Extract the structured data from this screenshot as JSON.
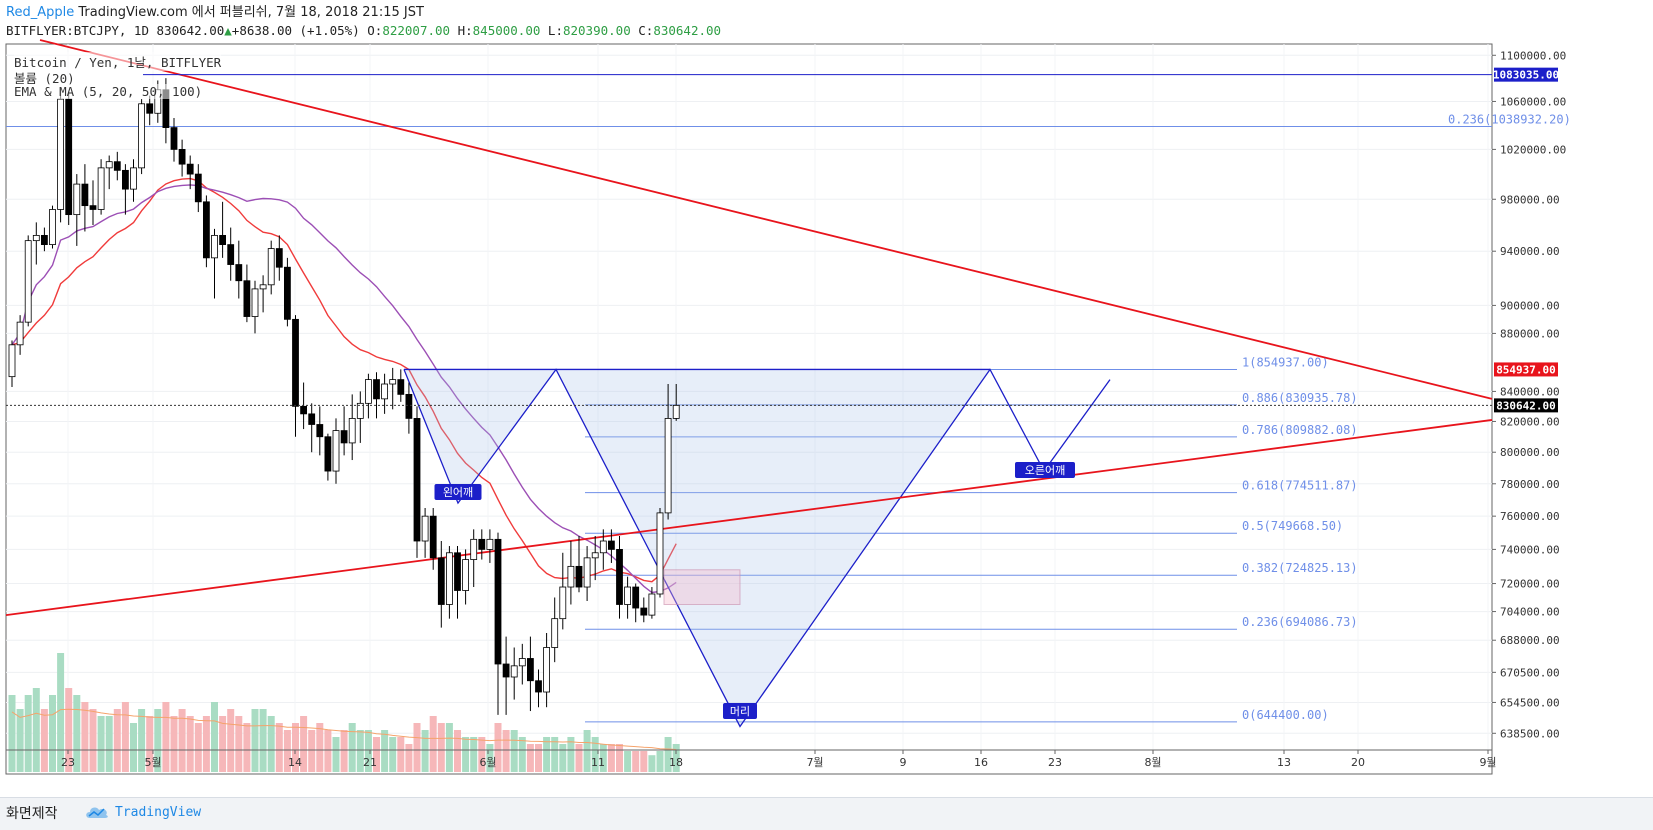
{
  "header": {
    "author": "Red_Apple",
    "published": "TradingView.com 에서 퍼블리쉬, 7월 18, 2018 21:15 JST",
    "symbol": "BITFLYER:BTCJPY, 1D",
    "last": "830642.00",
    "change": "+8638.00 (+1.05%)",
    "o_label": "O:",
    "o": "822007.00",
    "h_label": "H:",
    "h": "845000.00",
    "l_label": "L:",
    "l": "820390.00",
    "c_label": "C:",
    "c": "830642.00"
  },
  "legend": {
    "line1": "Bitcoin / Yen, 1날, BITFLYER",
    "line2": "볼륨 (20)",
    "line3": "EMA & MA (5, 20, 50, 100)"
  },
  "footer": {
    "made_with": "화면제작",
    "brand": "TradingView"
  },
  "colors": {
    "up": "#ffffff",
    "down": "#000000",
    "ema20": "#f03b3b",
    "ma50": "#9c4fb5",
    "trend": "#e8141c",
    "pattern": "#1c1fc9",
    "fib": "#6f8fe8",
    "vol_up": "#a9dcc3",
    "vol_down": "#f6b7b9",
    "vol_ma": "#f5a36b"
  },
  "chart_data": {
    "type": "candlestick",
    "title": "Bitcoin / Yen, 1날, BITFLYER",
    "y_axis": {
      "ticks": [
        "1100000.00",
        "1060000.00",
        "1020000.00",
        "980000.00",
        "940000.00",
        "900000.00",
        "880000.00",
        "840000.00",
        "820000.00",
        "800000.00",
        "780000.00",
        "760000.00",
        "740000.00",
        "720000.00",
        "704000.00",
        "688000.00",
        "670500.00",
        "654500.00",
        "638500.00"
      ],
      "scale": "log"
    },
    "x_axis": {
      "ticks": [
        "23",
        "5월",
        "14",
        "21",
        "6월",
        "11",
        "18",
        "7월",
        "9",
        "16",
        "23",
        "8월",
        "13",
        "20",
        "9월"
      ]
    },
    "price_labels": [
      {
        "text": "1083035.00",
        "value": 1083035,
        "color": "#1c1fc9"
      },
      {
        "text": "854937.00",
        "value": 854937,
        "color": "#e8141c"
      },
      {
        "text": "830642.00",
        "value": 830642,
        "color": "#000000"
      }
    ],
    "fib_levels": [
      {
        "label": "0.236(1038932.20)",
        "value": 1038932.2
      },
      {
        "label": "1(854937.00)",
        "value": 854937.0
      },
      {
        "label": "0.886(830935.78)",
        "value": 830935.78
      },
      {
        "label": "0.786(809882.08)",
        "value": 809882.08
      },
      {
        "label": "0.618(774511.87)",
        "value": 774511.87
      },
      {
        "label": "0.5(749668.50)",
        "value": 749668.5
      },
      {
        "label": "0.382(724825.13)",
        "value": 724825.13
      },
      {
        "label": "0.236(694086.73)",
        "value": 694086.73
      },
      {
        "label": "0(644400.00)",
        "value": 644400.0
      }
    ],
    "annotations": [
      {
        "text": "왼어깨",
        "day": 25,
        "value": 770000
      },
      {
        "text": "머리",
        "day": 50,
        "value": 644400
      },
      {
        "text": "오른어깨",
        "day": 80,
        "value": 784000
      }
    ],
    "candles": [
      [
        850000,
        875000,
        843000,
        872000
      ],
      [
        872000,
        893000,
        865000,
        888000
      ],
      [
        888000,
        952000,
        885000,
        948000
      ],
      [
        948000,
        962000,
        930000,
        952000
      ],
      [
        952000,
        958000,
        940000,
        945000
      ],
      [
        945000,
        975000,
        942000,
        972000
      ],
      [
        972000,
        1072000,
        962000,
        1062000
      ],
      [
        1062000,
        1068000,
        960000,
        968000
      ],
      [
        968000,
        1000000,
        944000,
        992000
      ],
      [
        992000,
        1008000,
        955000,
        975000
      ],
      [
        975000,
        995000,
        960000,
        972000
      ],
      [
        972000,
        1012000,
        968000,
        1005000
      ],
      [
        1005000,
        1015000,
        988000,
        1010000
      ],
      [
        1010000,
        1018000,
        995000,
        1003000
      ],
      [
        1003000,
        1008000,
        968000,
        988000
      ],
      [
        988000,
        1012000,
        978000,
        1005000
      ],
      [
        1005000,
        1062000,
        1000000,
        1058000
      ],
      [
        1058000,
        1065000,
        1040000,
        1050000
      ],
      [
        1050000,
        1078000,
        1042000,
        1070000
      ],
      [
        1070000,
        1080000,
        1025000,
        1038000
      ],
      [
        1038000,
        1046000,
        1010000,
        1020000
      ],
      [
        1020000,
        1028000,
        998000,
        1008000
      ],
      [
        1008000,
        1015000,
        988000,
        1000000
      ],
      [
        1000000,
        1008000,
        970000,
        978000
      ],
      [
        978000,
        983000,
        928000,
        935000
      ],
      [
        935000,
        957000,
        905000,
        952000
      ],
      [
        952000,
        978000,
        935000,
        945000
      ],
      [
        945000,
        958000,
        918000,
        930000
      ],
      [
        930000,
        948000,
        905000,
        918000
      ],
      [
        918000,
        930000,
        888000,
        892000
      ],
      [
        892000,
        918000,
        880000,
        912000
      ],
      [
        912000,
        922000,
        895000,
        915000
      ],
      [
        915000,
        948000,
        908000,
        942000
      ],
      [
        942000,
        952000,
        918000,
        928000
      ],
      [
        928000,
        935000,
        885000,
        890000
      ],
      [
        890000,
        893000,
        810000,
        830000
      ],
      [
        830000,
        846000,
        815000,
        825000
      ],
      [
        825000,
        832000,
        800000,
        818000
      ],
      [
        818000,
        830000,
        798000,
        810000
      ],
      [
        810000,
        812000,
        782000,
        788000
      ],
      [
        788000,
        822000,
        780000,
        814000
      ],
      [
        814000,
        830000,
        798000,
        806000
      ],
      [
        806000,
        838000,
        795000,
        822000
      ],
      [
        822000,
        840000,
        806000,
        832000
      ],
      [
        832000,
        852000,
        822000,
        848000
      ],
      [
        848000,
        853000,
        822000,
        835000
      ],
      [
        835000,
        852000,
        825000,
        845000
      ],
      [
        845000,
        856000,
        828000,
        848000
      ],
      [
        848000,
        855000,
        833000,
        838000
      ],
      [
        838000,
        846000,
        812000,
        822000
      ],
      [
        822000,
        830000,
        735000,
        745000
      ],
      [
        745000,
        765000,
        735000,
        760000
      ],
      [
        760000,
        765000,
        728000,
        735000
      ],
      [
        735000,
        745000,
        695000,
        708000
      ],
      [
        708000,
        742000,
        700000,
        738000
      ],
      [
        738000,
        742000,
        700000,
        716000
      ],
      [
        716000,
        740000,
        708000,
        734000
      ],
      [
        734000,
        752000,
        718000,
        746000
      ],
      [
        746000,
        752000,
        734000,
        740000
      ],
      [
        740000,
        752000,
        732000,
        746000
      ],
      [
        746000,
        750000,
        648000,
        675000
      ],
      [
        675000,
        690000,
        648000,
        668000
      ],
      [
        668000,
        684000,
        656000,
        674000
      ],
      [
        674000,
        686000,
        664000,
        678000
      ],
      [
        678000,
        690000,
        650000,
        666000
      ],
      [
        666000,
        672000,
        652000,
        660000
      ],
      [
        660000,
        692000,
        652000,
        684000
      ],
      [
        684000,
        712000,
        676000,
        700000
      ],
      [
        700000,
        738000,
        694000,
        718000
      ],
      [
        718000,
        745000,
        708000,
        730000
      ],
      [
        730000,
        748000,
        715000,
        718000
      ],
      [
        718000,
        742000,
        710000,
        735000
      ],
      [
        735000,
        748000,
        722000,
        738000
      ],
      [
        738000,
        752000,
        728000,
        745000
      ],
      [
        745000,
        752000,
        732000,
        740000
      ],
      [
        740000,
        748000,
        700000,
        708000
      ],
      [
        708000,
        724000,
        700000,
        718000
      ],
      [
        718000,
        720000,
        698000,
        706000
      ],
      [
        706000,
        712000,
        698000,
        702000
      ],
      [
        702000,
        718000,
        700000,
        714000
      ],
      [
        714000,
        765000,
        712000,
        762000
      ],
      [
        762000,
        845000,
        758000,
        822000
      ],
      [
        822000,
        845000,
        820390,
        830642
      ]
    ],
    "volume": [
      55,
      45,
      55,
      60,
      45,
      55,
      85,
      60,
      55,
      50,
      45,
      40,
      40,
      45,
      50,
      35,
      45,
      40,
      45,
      50,
      40,
      45,
      40,
      35,
      40,
      50,
      40,
      45,
      40,
      35,
      45,
      45,
      40,
      35,
      30,
      35,
      40,
      30,
      35,
      30,
      25,
      30,
      35,
      30,
      30,
      25,
      30,
      25,
      25,
      20,
      35,
      30,
      40,
      35,
      35,
      30,
      25,
      25,
      25,
      20,
      35,
      30,
      30,
      25,
      20,
      20,
      25,
      25,
      20,
      25,
      20,
      30,
      25,
      20,
      20,
      20,
      15,
      15,
      15,
      12,
      15,
      25,
      20
    ]
  }
}
